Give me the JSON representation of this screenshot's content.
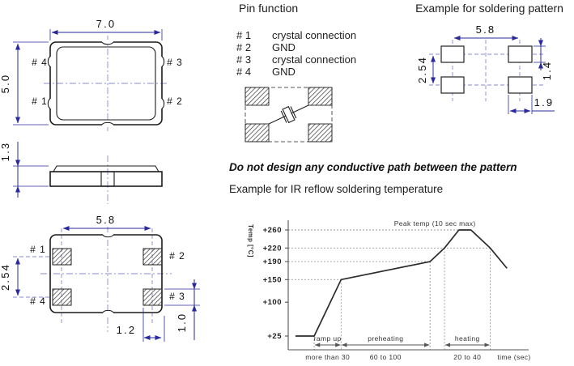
{
  "colors": {
    "dimension": "#2a2a9e",
    "centerline": "#8a8ace",
    "outline": "#1c1c1c"
  },
  "drawings": {
    "top_view": {
      "width_dim": "7.0",
      "height_dim": "5.0",
      "pin_tl": "# 4",
      "pin_tr": "# 3",
      "pin_bl": "# 1",
      "pin_br": "# 2"
    },
    "side_view": {
      "height_dim": "1.3"
    },
    "bottom_view": {
      "width_dim": "5.8",
      "row_pitch_dim": "2.54",
      "pad_inset_dim": "1.2",
      "pad_height_dim": "1.0",
      "pin_tl": "# 1",
      "pin_tr": "# 2",
      "pin_bl": "# 4",
      "pin_br": "# 3"
    }
  },
  "pin_function": {
    "title": "Pin function",
    "items": [
      {
        "no": "# 1",
        "fn": "crystal connection"
      },
      {
        "no": "# 2",
        "fn": "GND"
      },
      {
        "no": "# 3",
        "fn": "crystal connection"
      },
      {
        "no": "# 4",
        "fn": "GND"
      }
    ]
  },
  "soldering_pattern": {
    "title": "Example for soldering pattern",
    "h_pitch_dim": "5.8",
    "v_pitch_dim": "2.54",
    "pad_height_dim": "1.4",
    "pad_width_dim": "1.9"
  },
  "notes": {
    "warning": "Do not design any conductive path between the pattern",
    "reflow_title": "Example for IR reflow soldering temperature"
  },
  "chart_data": {
    "type": "line",
    "title": "Example for IR reflow soldering temperature",
    "ylabel": "Temp [°C]",
    "xlabel": "time (sec)",
    "ylim": [
      0,
      280
    ],
    "grid": "dotted guide lines only",
    "legend": "none",
    "yticks": [
      {
        "label": "+260",
        "temp": 260
      },
      {
        "label": "+220",
        "temp": 220
      },
      {
        "label": "+190",
        "temp": 190
      },
      {
        "label": "+150",
        "temp": 150
      },
      {
        "label": "+100",
        "temp": 100
      },
      {
        "label": "+25",
        "temp": 25
      }
    ],
    "annotation": "Peak temp (10 sec max)",
    "regions": [
      {
        "label": "ramp up",
        "duration": "more than 30",
        "span_pct": [
          10.8,
          22
        ]
      },
      {
        "label": "preheating",
        "duration": "60 to 100",
        "span_pct": [
          22,
          59
        ]
      },
      {
        "label": "heating",
        "duration": "20 to 40",
        "span_pct": [
          65,
          84
        ]
      }
    ],
    "profile": [
      {
        "x_pct": 3,
        "temp": 25
      },
      {
        "x_pct": 10.8,
        "temp": 25
      },
      {
        "x_pct": 22,
        "temp": 150
      },
      {
        "x_pct": 59,
        "temp": 190
      },
      {
        "x_pct": 65,
        "temp": 220
      },
      {
        "x_pct": 71,
        "temp": 260
      },
      {
        "x_pct": 76,
        "temp": 260
      },
      {
        "x_pct": 84,
        "temp": 220
      },
      {
        "x_pct": 91,
        "temp": 175
      }
    ],
    "gridlines": [
      {
        "temp": 260,
        "to_x_pct": 71
      },
      {
        "temp": 220,
        "to_x_pct": 84
      },
      {
        "temp": 190,
        "to_x_pct": 59
      },
      {
        "temp": 150,
        "to_x_pct": 22
      }
    ],
    "vlines": [
      {
        "x_pct": 10.8,
        "from_temp": 25
      },
      {
        "x_pct": 22,
        "from_temp": 150
      },
      {
        "x_pct": 59,
        "from_temp": 190
      },
      {
        "x_pct": 65,
        "from_temp": 220
      },
      {
        "x_pct": 84,
        "from_temp": 220
      }
    ]
  }
}
